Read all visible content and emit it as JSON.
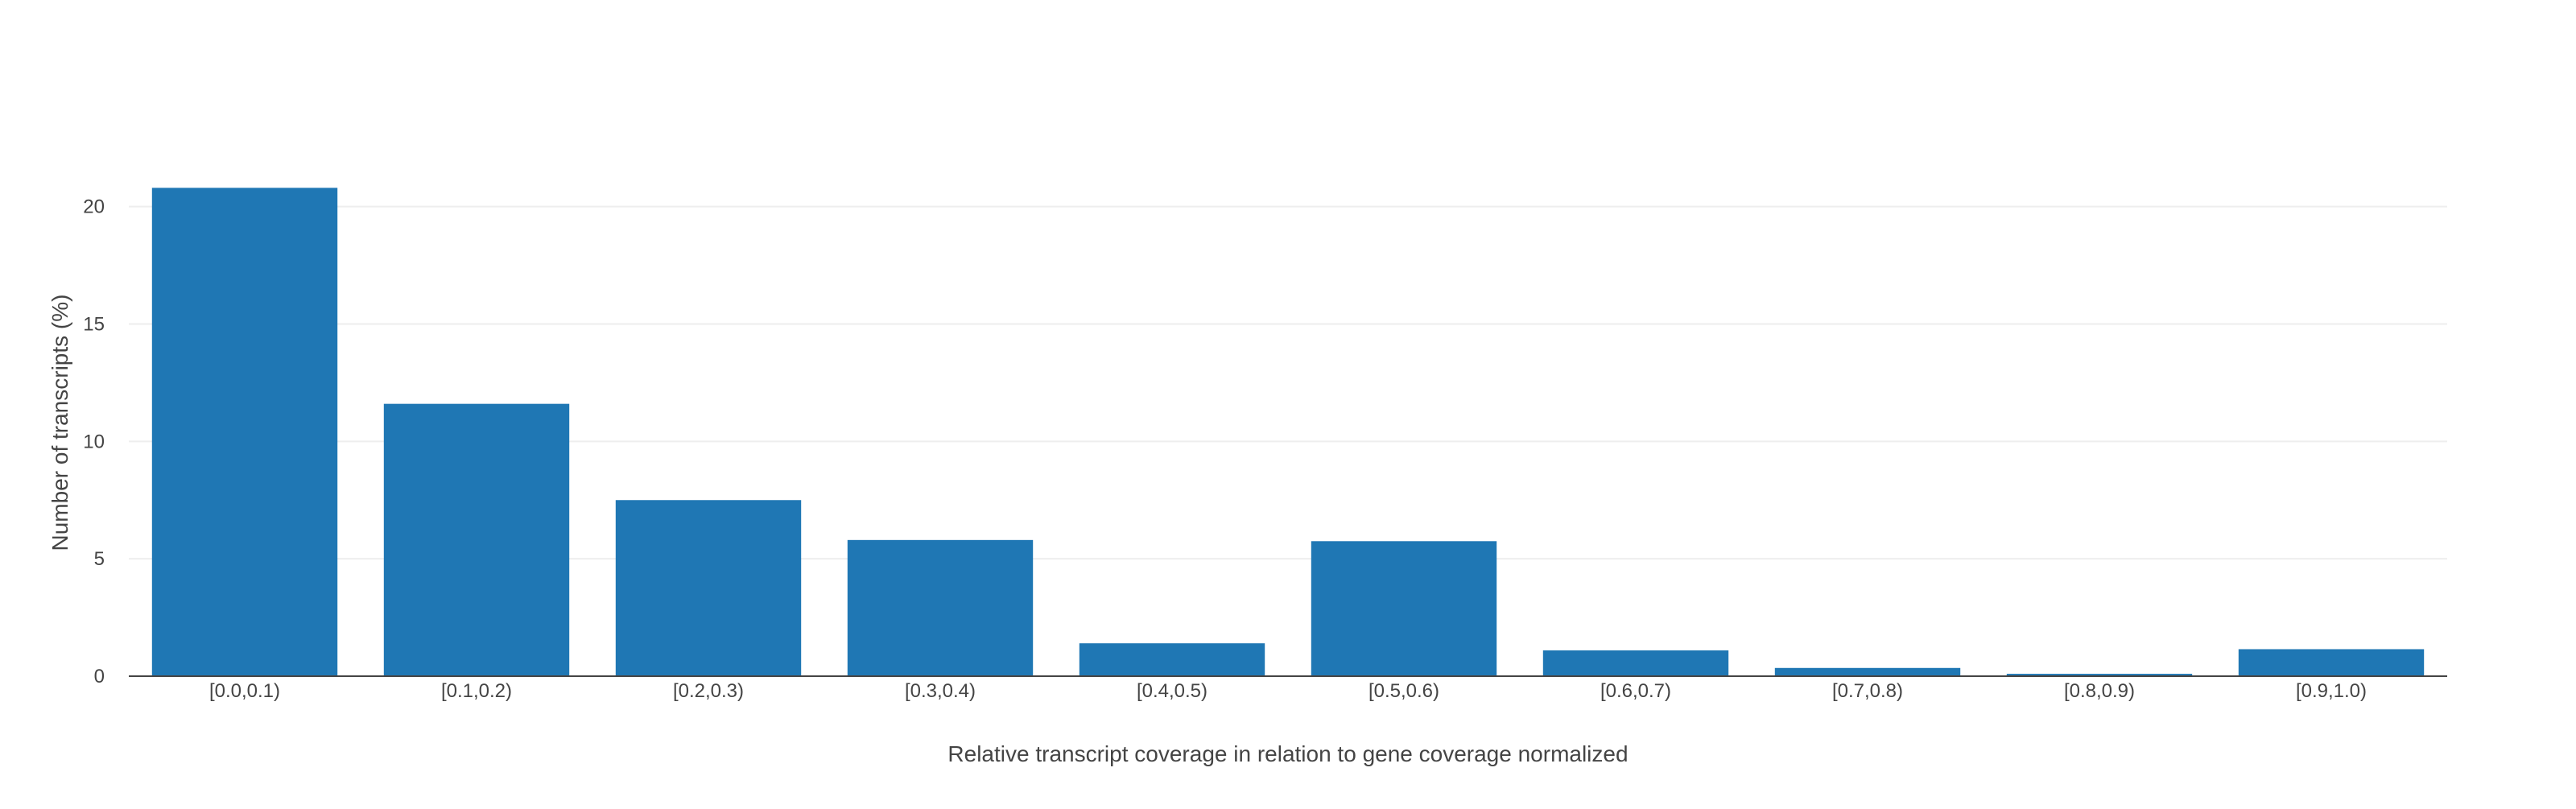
{
  "chart_data": {
    "type": "bar",
    "title": "",
    "xlabel": "Relative transcript coverage in relation to gene coverage normalized",
    "ylabel": "Number of transcripts (%)",
    "categories": [
      "[0.0,0.1)",
      "[0.1,0.2)",
      "[0.2,0.3)",
      "[0.3,0.4)",
      "[0.4,0.5)",
      "[0.5,0.6)",
      "[0.6,0.7)",
      "[0.7,0.8)",
      "[0.8,0.9)",
      "[0.9,1.0)"
    ],
    "values": [
      20.8,
      11.6,
      7.5,
      5.8,
      1.4,
      5.75,
      1.1,
      0.35,
      0.1,
      1.15
    ],
    "ylim": [
      0,
      21.6
    ],
    "yticks": [
      0,
      5,
      10,
      15,
      20
    ],
    "bar_color": "#1f77b4",
    "grid": true,
    "legend": "none"
  }
}
